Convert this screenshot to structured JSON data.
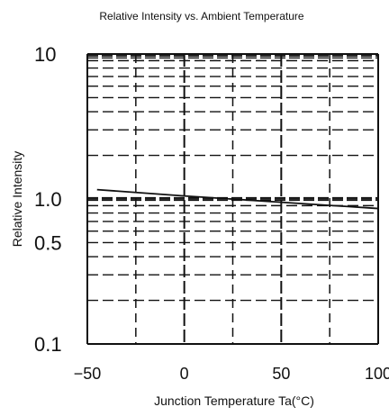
{
  "chart_data": {
    "type": "line",
    "title": "Relative Intensity vs. Ambient Temperature",
    "xlabel": "Junction Temperature Ta(°C)",
    "ylabel": "Relative Intensity",
    "xlim": [
      -50,
      100
    ],
    "ylim": [
      0.1,
      10
    ],
    "yscale": "log",
    "grid": true,
    "x_ticks": [
      -50,
      0,
      50,
      100
    ],
    "x_tick_labels": [
      "−50",
      "0",
      "50",
      "100"
    ],
    "y_ticks": [
      10,
      1.0,
      0.5,
      0.1
    ],
    "y_tick_labels": [
      "10",
      "1.0",
      "0.5",
      "0.1"
    ],
    "series": [
      {
        "x": [
          -45,
          0,
          50,
          100
        ],
        "y": [
          1.16,
          1.05,
          0.95,
          0.86
        ]
      }
    ]
  }
}
